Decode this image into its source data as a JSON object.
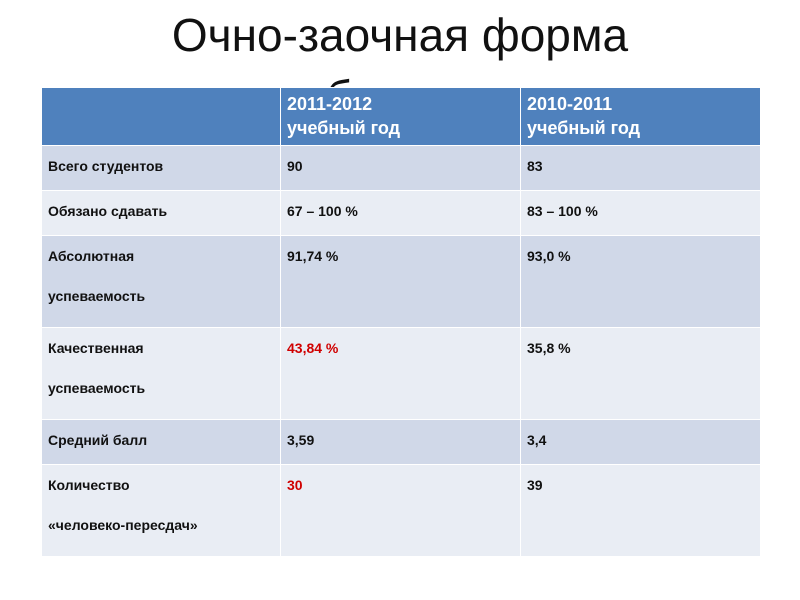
{
  "title": "Очно-заочная форма обучения",
  "table": {
    "header": [
      [
        "2011-2012",
        "учебный год"
      ],
      [
        "2010-2011",
        "учебный год"
      ]
    ],
    "rows": [
      {
        "label": [
          "Всего студентов"
        ],
        "cells": [
          {
            "text": "90"
          },
          {
            "text": "83"
          }
        ]
      },
      {
        "label": [
          "Обязано сдавать"
        ],
        "cells": [
          {
            "text": "67 – 100 %"
          },
          {
            "text": "83 – 100 %"
          }
        ]
      },
      {
        "label": [
          "Абсолютная",
          "успеваемость"
        ],
        "cells": [
          {
            "text": "91,74 %"
          },
          {
            "text": "93,0 %"
          }
        ]
      },
      {
        "label": [
          "Качественная",
          "успеваемость"
        ],
        "cells": [
          {
            "text": "43,84 %",
            "color": "#d00000"
          },
          {
            "text": "35,8 %"
          }
        ]
      },
      {
        "label": [
          "Средний балл"
        ],
        "cells": [
          {
            "text": "3,59"
          },
          {
            "text": "3,4"
          }
        ]
      },
      {
        "label": [
          "Количество",
          "«человеко-пересдач»"
        ],
        "cells": [
          {
            "text": "30",
            "color": "#d00000"
          },
          {
            "text": "39"
          }
        ]
      }
    ]
  }
}
